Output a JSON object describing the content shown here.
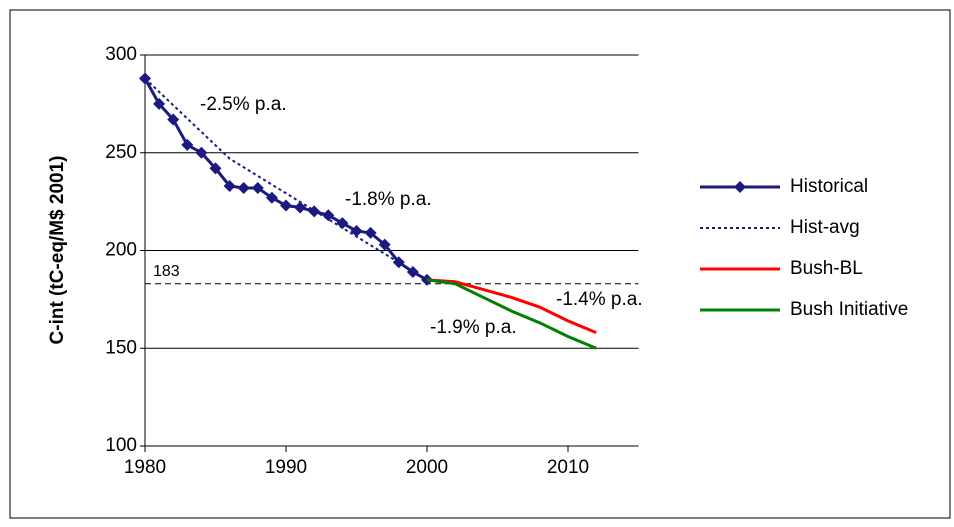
{
  "chart_data": {
    "type": "line",
    "y_label": "C-int (tC-eq/M$ 2001)",
    "xlim": [
      1980,
      2015
    ],
    "xticks": [
      1980,
      1990,
      2000,
      2010
    ],
    "ylim": [
      100,
      300
    ],
    "yticks": [
      100,
      150,
      200,
      250,
      300
    ],
    "grid": true,
    "legend": "right",
    "reference_line": 183,
    "annotations": [
      "-2.5% p.a.",
      "-1.8% p.a.",
      "-1.4% p.a.",
      "-1.9% p.a."
    ],
    "series": [
      {
        "name": "Historical",
        "color": "#1a1a80",
        "style": "solid",
        "marker": "diamond",
        "x": [
          1980,
          1981,
          1982,
          1983,
          1984,
          1985,
          1986,
          1987,
          1988,
          1989,
          1990,
          1991,
          1992,
          1993,
          1994,
          1995,
          1996,
          1997,
          1998,
          1999,
          2000
        ],
        "values": [
          288,
          275,
          267,
          254,
          250,
          242,
          233,
          232,
          232,
          227,
          223,
          222,
          220,
          218,
          214,
          210,
          209,
          203,
          194,
          189,
          185
        ]
      },
      {
        "name": "Hist-avg",
        "color": "#1a1a80",
        "style": "dotted",
        "x": [
          1980,
          1986,
          2000
        ],
        "values": [
          288,
          247,
          185
        ]
      },
      {
        "name": "Bush-BL",
        "color": "#ff0000",
        "style": "solid",
        "x": [
          2000,
          2002,
          2004,
          2006,
          2008,
          2010,
          2012
        ],
        "values": [
          185,
          184,
          180,
          176,
          171,
          164,
          158
        ]
      },
      {
        "name": "Bush Initiative",
        "color": "#008000",
        "style": "solid",
        "x": [
          2000,
          2002,
          2004,
          2006,
          2008,
          2010,
          2012
        ],
        "values": [
          185,
          183,
          176,
          169,
          163,
          156,
          150
        ]
      }
    ]
  }
}
